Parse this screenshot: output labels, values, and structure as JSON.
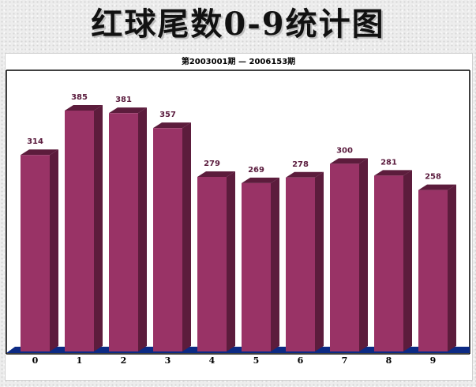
{
  "page": {
    "title": "红球尾数0-9统计图"
  },
  "chart_data": {
    "type": "bar",
    "title": "第2003001期 — 2006153期",
    "xlabel": "",
    "ylabel": "",
    "categories": [
      "0",
      "1",
      "2",
      "3",
      "4",
      "5",
      "6",
      "7",
      "8",
      "9"
    ],
    "values": [
      314,
      385,
      381,
      357,
      279,
      269,
      278,
      300,
      281,
      258
    ],
    "ylim": [
      0,
      420
    ],
    "grid": false,
    "legend": "none",
    "colors": {
      "bar_front": "#993366",
      "bar_side": "#5c1c3c",
      "bar_top": "#b04a80",
      "floor": "#0c2a84",
      "value_label": "#5a1b3d",
      "axis": "#000000"
    }
  }
}
